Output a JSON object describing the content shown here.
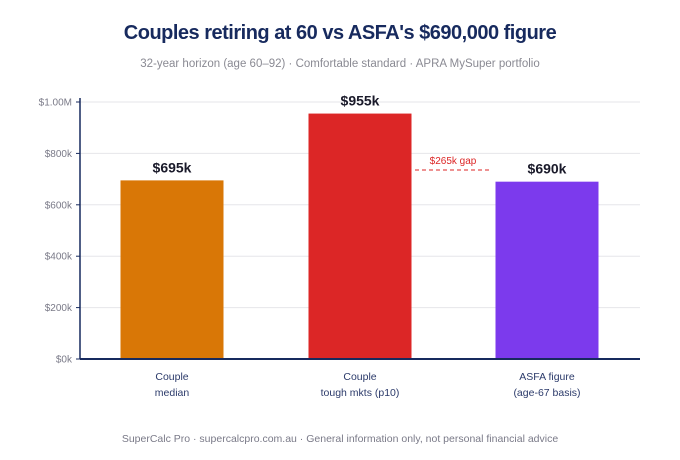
{
  "title": "Couples retiring at 60 vs ASFA's $690,000 figure",
  "subtitle": "32-year horizon (age 60–92) · Comfortable standard · APRA MySuper portfolio",
  "footer": "SuperCalc Pro · supercalcpro.com.au · General information only, not personal financial advice",
  "chart_data": {
    "type": "bar",
    "categories": [
      [
        "Couple",
        "median"
      ],
      [
        "Couple",
        "tough mkts (p10)"
      ],
      [
        "ASFA figure",
        "(age-67 basis)"
      ]
    ],
    "values": [
      695000,
      955000,
      690000
    ],
    "value_labels": [
      "$695k",
      "$955k",
      "$690k"
    ],
    "colors": [
      "#d97706",
      "#dc2626",
      "#7c3aed"
    ],
    "ylim": [
      0,
      1000000
    ],
    "yticks": [
      0,
      200000,
      400000,
      600000,
      800000,
      1000000
    ],
    "ytick_labels": [
      "$0k",
      "$200k",
      "$400k",
      "$600k",
      "$800k",
      "$1.00M"
    ],
    "grid": true,
    "annotation": {
      "text": "$265k gap",
      "color": "#dc2626",
      "style": "dashed"
    }
  }
}
